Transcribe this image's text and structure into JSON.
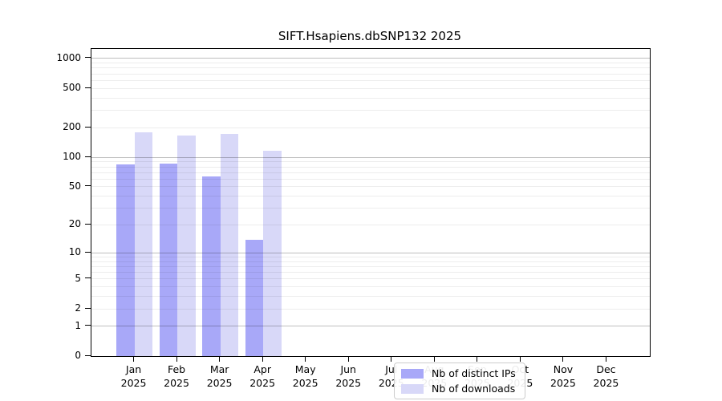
{
  "chart_data": {
    "type": "bar",
    "title": "SIFT.Hsapiens.dbSNP132 2025",
    "year": "2025",
    "categories": [
      "Jan",
      "Feb",
      "Mar",
      "Apr",
      "May",
      "Jun",
      "Jul",
      "Aug",
      "Sep",
      "Oct",
      "Nov",
      "Dec"
    ],
    "series": [
      {
        "name": "Nb of distinct IPs",
        "color": "#a8a8f8",
        "values": [
          84,
          86,
          64,
          14,
          null,
          null,
          null,
          null,
          null,
          null,
          null,
          null
        ]
      },
      {
        "name": "Nb of downloads",
        "color": "#d8d8f8",
        "values": [
          180,
          165,
          173,
          117,
          null,
          null,
          null,
          null,
          null,
          null,
          null,
          null
        ]
      }
    ],
    "yscale": "log10(1+x)",
    "yticks": [
      0,
      1,
      2,
      5,
      10,
      20,
      50,
      100,
      200,
      500,
      1000
    ],
    "ylim": [
      0,
      1250
    ],
    "grid": {
      "major": [
        1,
        10,
        100,
        1000
      ],
      "minor_decades": [
        1,
        10,
        100
      ],
      "major_color": "rgba(0,0,0,0.25)",
      "minor_color": "rgba(0,0,0,0.07)"
    },
    "legend_position": "bottom-center-inside",
    "frame_color": "#000000",
    "xlabel": "",
    "ylabel": ""
  }
}
